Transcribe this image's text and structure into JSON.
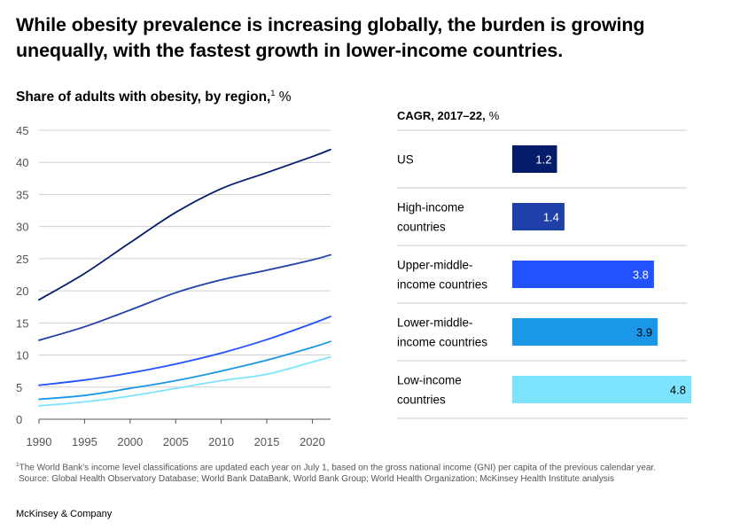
{
  "page": {
    "title": "While obesity prevalence is increasing globally, the burden is growing unequally, with the fastest growth in lower-income countries.",
    "footnote_marker": "1",
    "footnote_text": "The World Bank’s income level classifications are updated each year on July 1, based on the gross national income (GNI) per capita of the previous calendar year.",
    "source_text": "Source: Global Health Observatory Database; World Bank DataBank, World Bank Group; World Health Organization; McKinsey Health Institute analysis",
    "brand": "McKinsey & Company"
  },
  "chart_data": [
    {
      "type": "line",
      "title": "Share of adults with obesity, by region,",
      "title_marker": "1",
      "title_unit": "%",
      "xlim": [
        1990,
        2022
      ],
      "ylim": [
        0,
        45
      ],
      "x_ticks": [
        "1990",
        "1995",
        "2000",
        "2005",
        "2010",
        "2015",
        "2020"
      ],
      "y_ticks": [
        "0",
        "5",
        "10",
        "15",
        "20",
        "25",
        "30",
        "35",
        "40",
        "45"
      ],
      "grid": true,
      "x": [
        1990,
        1995,
        2000,
        2005,
        2010,
        2015,
        2020,
        2022
      ],
      "series": [
        {
          "color": "#051c6b",
          "values": [
            18.6,
            22.7,
            27.5,
            32.2,
            35.9,
            38.4,
            40.9,
            42.0
          ]
        },
        {
          "color": "#1f40a8",
          "values": [
            12.3,
            14.4,
            17.0,
            19.7,
            21.7,
            23.2,
            24.8,
            25.6
          ]
        },
        {
          "color": "#2251ff",
          "values": [
            5.3,
            6.1,
            7.2,
            8.6,
            10.3,
            12.4,
            14.9,
            16.0
          ]
        },
        {
          "color": "#1a97e6",
          "values": [
            3.1,
            3.7,
            4.8,
            6.0,
            7.5,
            9.2,
            11.2,
            12.1
          ]
        },
        {
          "color": "#7de4ff",
          "values": [
            2.1,
            2.7,
            3.6,
            4.8,
            6.0,
            7.0,
            8.9,
            9.7
          ]
        }
      ]
    },
    {
      "type": "bar",
      "title": "CAGR, 2017–22,",
      "title_unit": "%",
      "categories": [
        [
          "US"
        ],
        [
          "High-income",
          "countries"
        ],
        [
          "Upper-middle-",
          "income countries"
        ],
        [
          "Lower-middle-",
          "income countries"
        ],
        [
          "Low-income",
          "countries"
        ]
      ],
      "values": [
        1.2,
        1.4,
        3.8,
        3.9,
        4.8
      ],
      "labels": [
        "1.2",
        "1.4",
        "3.8",
        "3.9",
        "4.8"
      ],
      "colors": [
        "#051c6b",
        "#1f40a8",
        "#2251ff",
        "#1a97e6",
        "#7de4ff"
      ],
      "label_colors": [
        "#ffffff",
        "#ffffff",
        "#ffffff",
        "#000000",
        "#000000"
      ],
      "xlim": [
        0,
        4.8
      ]
    }
  ]
}
